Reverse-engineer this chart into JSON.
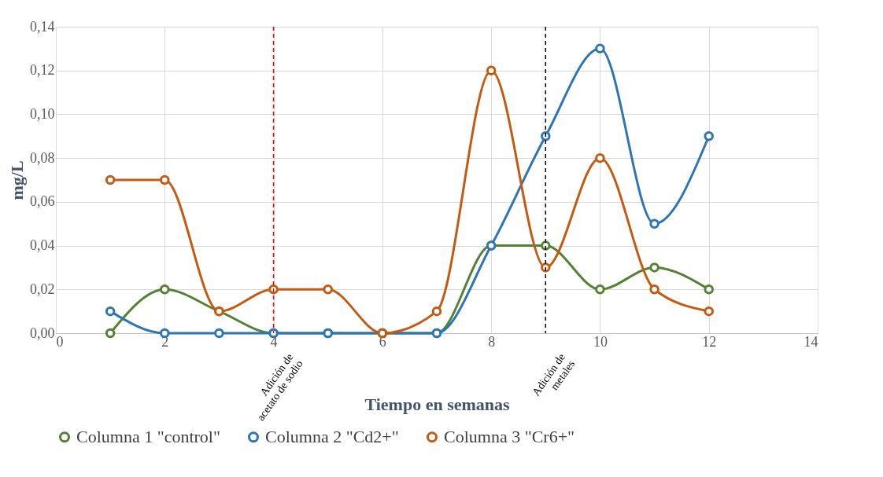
{
  "chart_data": {
    "type": "line",
    "xlabel": "Tiempo en semanas",
    "ylabel": "mg/L",
    "x": [
      1,
      2,
      3,
      4,
      5,
      6,
      7,
      8,
      9,
      10,
      11,
      12
    ],
    "series": [
      {
        "name": "Columna 1 \"control\"",
        "color": "#548235",
        "values": [
          0,
          0.02,
          0.01,
          0,
          0,
          0,
          0,
          0.04,
          0.04,
          0.02,
          0.03,
          0.02
        ]
      },
      {
        "name": "Columna 2 \"Cd2+\"",
        "color": "#2e75b6",
        "values": [
          0.01,
          0,
          0,
          0,
          0,
          0,
          0,
          0.04,
          0.09,
          0.13,
          0.05,
          0.09
        ]
      },
      {
        "name": "Columna 3 \"Cr6+\"",
        "color": "#c55a11",
        "values": [
          0.07,
          0.07,
          0.01,
          0.02,
          0.02,
          0,
          0.01,
          0.12,
          0.03,
          0.08,
          0.02,
          0.01
        ]
      }
    ],
    "xlim": [
      0,
      14
    ],
    "xticks": [
      0,
      2,
      4,
      6,
      8,
      10,
      12,
      14
    ],
    "ylim": [
      0,
      0.14
    ],
    "yticks": [
      {
        "value": 0,
        "label": "0,00"
      },
      {
        "value": 0.02,
        "label": "0,02"
      },
      {
        "value": 0.04,
        "label": "0,04"
      },
      {
        "value": 0.06,
        "label": "0,06"
      },
      {
        "value": 0.08,
        "label": "0,08"
      },
      {
        "value": 0.1,
        "label": "0,10"
      },
      {
        "value": 0.12,
        "label": "0,12"
      },
      {
        "value": 0.14,
        "label": "0,14"
      }
    ],
    "ref_lines": [
      {
        "axis": "x",
        "value": 4,
        "label": "Adición de acetato de sodio",
        "color": "#ff0000",
        "line_style": "dashed"
      },
      {
        "axis": "x",
        "value": 9,
        "label": "Adición de metales",
        "color": "#000000",
        "line_style": "dashed"
      }
    ],
    "grid": true,
    "legend": "bottom",
    "marker": "circle",
    "line_style": "solid"
  }
}
